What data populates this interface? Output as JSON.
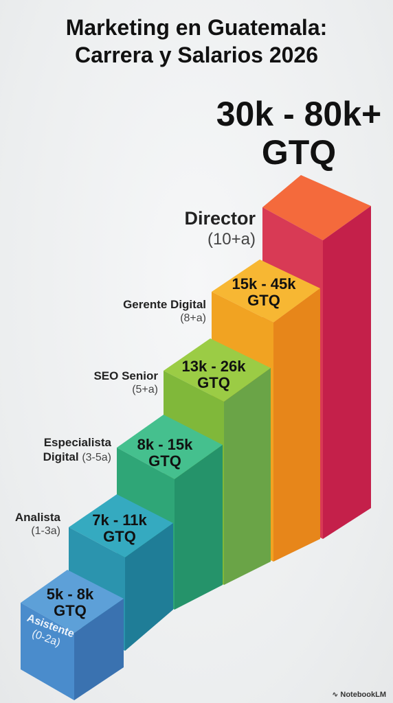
{
  "title": {
    "line1": "Marketing en Guatemala:",
    "line2": "Carrera y Salarios 2026"
  },
  "colors": {
    "asistente": "#4a8fd0",
    "analista": "#2a9db8",
    "especialista": "#3fb88a",
    "seo": "#86c13f",
    "gerente": "#f0a424",
    "director": "#e8334e"
  },
  "levels": [
    {
      "role": "Asistente",
      "years": "(0-2a)",
      "salary_line1": "5k - 8k",
      "salary_line2": "GTQ"
    },
    {
      "role": "Analista",
      "years": "(1-3a)",
      "salary_line1": "7k - 11k",
      "salary_line2": "GTQ"
    },
    {
      "role_line1": "Especialista",
      "role_line2": "Digital",
      "years": "(3-5a)",
      "salary_line1": "8k - 15k",
      "salary_line2": "GTQ"
    },
    {
      "role": "SEO Senior",
      "years": "(5+a)",
      "salary_line1": "13k - 26k",
      "salary_line2": "GTQ"
    },
    {
      "role": "Gerente Digital",
      "years": "(8+a)",
      "salary_line1": "15k - 45k",
      "salary_line2": "GTQ"
    },
    {
      "role": "Director",
      "years": "(10+a)",
      "salary_line1": "30k - 80k+",
      "salary_line2": "GTQ"
    }
  ],
  "watermark": "NotebookLM",
  "watermark_icon": "notebooklm-logo-icon"
}
